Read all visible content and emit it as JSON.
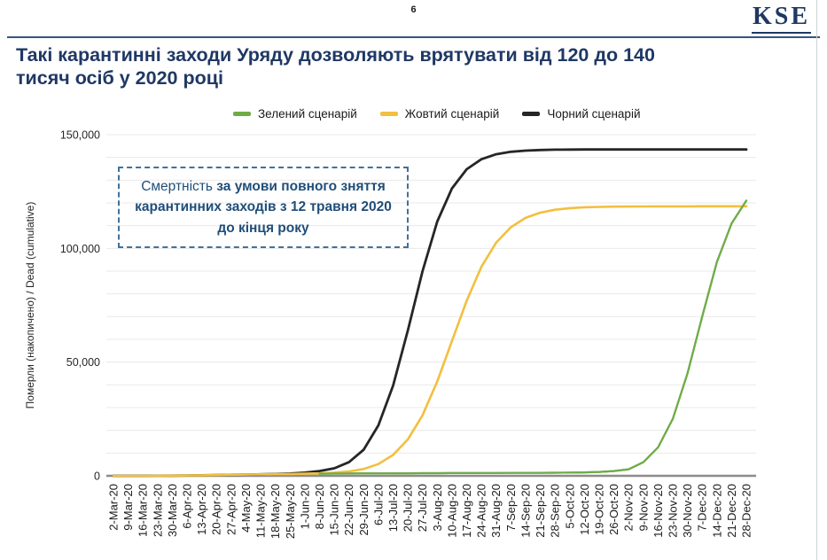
{
  "page": {
    "number": "6",
    "logo": "KSE"
  },
  "title": {
    "line1": "Такі карантинні заходи Уряду дозволяють врятувати від 120 до 140",
    "line2": "тисяч осіб у 2020 році"
  },
  "annotation": {
    "normal_part": "Смертність ",
    "bold_part": "за умови повного зняття карантинних заходів з 12 травня 2020 до кінця року"
  },
  "chart_data": {
    "type": "line",
    "title": "",
    "xlabel": "",
    "ylabel": "Померли (накопичено) / Dead (cumulative)",
    "ylim": [
      0,
      150000
    ],
    "ytick_step": 50000,
    "grid_step": 10000,
    "ytick_labels": [
      "0",
      "50,000",
      "100,000",
      "150,000"
    ],
    "legend_position": "top",
    "grid": true,
    "categories": [
      "2-Mar-20",
      "9-Mar-20",
      "16-Mar-20",
      "23-Mar-20",
      "30-Mar-20",
      "6-Apr-20",
      "13-Apr-20",
      "20-Apr-20",
      "27-Apr-20",
      "4-May-20",
      "11-May-20",
      "18-May-20",
      "25-May-20",
      "1-Jun-20",
      "8-Jun-20",
      "15-Jun-20",
      "22-Jun-20",
      "29-Jun-20",
      "6-Jul-20",
      "13-Jul-20",
      "20-Jul-20",
      "27-Jul-20",
      "3-Aug-20",
      "10-Aug-20",
      "17-Aug-20",
      "24-Aug-20",
      "31-Aug-20",
      "7-Sep-20",
      "14-Sep-20",
      "21-Sep-20",
      "28-Sep-20",
      "5-Oct-20",
      "12-Oct-20",
      "19-Oct-20",
      "26-Oct-20",
      "2-Nov-20",
      "9-Nov-20",
      "16-Nov-20",
      "23-Nov-20",
      "30-Nov-20",
      "7-Dec-20",
      "14-Dec-20",
      "21-Dec-20",
      "28-Dec-20"
    ],
    "series": [
      {
        "name": "Зелений сценарій",
        "color": "#6fac47",
        "values": [
          0,
          5,
          15,
          40,
          80,
          140,
          210,
          300,
          420,
          550,
          650,
          750,
          830,
          900,
          950,
          1000,
          1040,
          1080,
          1100,
          1120,
          1140,
          1160,
          1180,
          1200,
          1220,
          1240,
          1260,
          1280,
          1300,
          1320,
          1350,
          1400,
          1500,
          1700,
          2100,
          2900,
          6000,
          12500,
          25000,
          45000,
          70000,
          94000,
          111000,
          121000
        ]
      },
      {
        "name": "Жовтий сценарій",
        "color": "#f2bf3f",
        "values": [
          0,
          5,
          15,
          40,
          80,
          150,
          230,
          330,
          450,
          560,
          660,
          740,
          820,
          920,
          1100,
          1400,
          1900,
          3000,
          5200,
          9200,
          16000,
          26600,
          41500,
          59300,
          77000,
          91900,
          102500,
          109300,
          113400,
          115700,
          117000,
          117700,
          118100,
          118250,
          118350,
          118400,
          118450,
          118470,
          118480,
          118490,
          118500,
          118500,
          118500,
          118500
        ]
      },
      {
        "name": "Чорний сценарій",
        "color": "#262626",
        "values": [
          0,
          5,
          15,
          40,
          80,
          150,
          230,
          330,
          450,
          560,
          680,
          820,
          1000,
          1400,
          2100,
          3300,
          6000,
          11500,
          22200,
          39700,
          63900,
          90000,
          111800,
          126400,
          134800,
          139200,
          141400,
          142500,
          143000,
          143250,
          143400,
          143450,
          143480,
          143500,
          143500,
          143500,
          143500,
          143500,
          143500,
          143500,
          143500,
          143500,
          143500,
          143500
        ]
      }
    ],
    "draw_order": [
      [
        0,
        0
      ],
      [
        2,
        0
      ],
      [
        1,
        0
      ],
      [
        0,
        14
      ]
    ],
    "stroke_widths": [
      2.2,
      2.6,
      2.8
    ]
  },
  "colors": {
    "title": "#1f3864",
    "annotation_text": "#1f4e79",
    "annotation_border": "#41719c",
    "gridline": "#e9e9e9",
    "axis_line": "#8c8c8c"
  }
}
